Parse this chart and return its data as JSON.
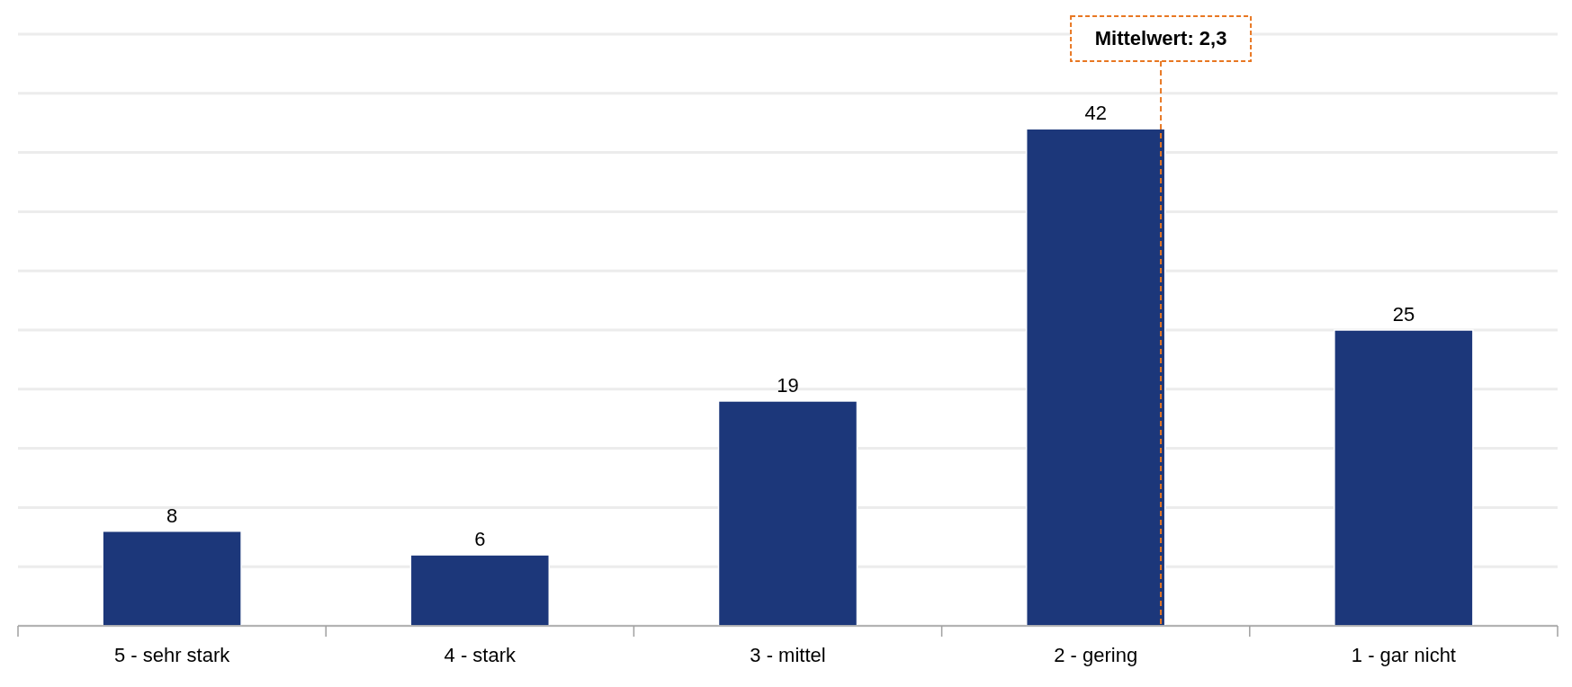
{
  "chart_data": {
    "type": "bar",
    "categories": [
      "5 - sehr stark",
      "4 - stark",
      "3 - mittel",
      "2 - gering",
      "1 - gar nicht"
    ],
    "values": [
      8,
      6,
      19,
      42,
      25
    ],
    "color": "#1c377a",
    "data_labels": true,
    "ylim": [
      0,
      50
    ],
    "yticks": [
      {
        "value": 0,
        "label": null
      },
      {
        "value": 5,
        "label": null
      },
      {
        "value": 10,
        "label": null
      },
      {
        "value": 15,
        "label": null
      },
      {
        "value": 20,
        "label": null
      },
      {
        "value": 25,
        "label": null
      },
      {
        "value": 30,
        "label": null
      },
      {
        "value": 35,
        "label": null
      },
      {
        "value": 40,
        "label": null
      },
      {
        "value": 45,
        "label": null
      },
      {
        "value": 50,
        "label": null
      }
    ],
    "tick_labels": "x",
    "grid": "y",
    "ref_lines": [
      {
        "axis": "x",
        "value": "2 - gering",
        "label": "Mittelwert: 2,3",
        "color": "#e87722",
        "line_style": "dashed"
      }
    ]
  }
}
